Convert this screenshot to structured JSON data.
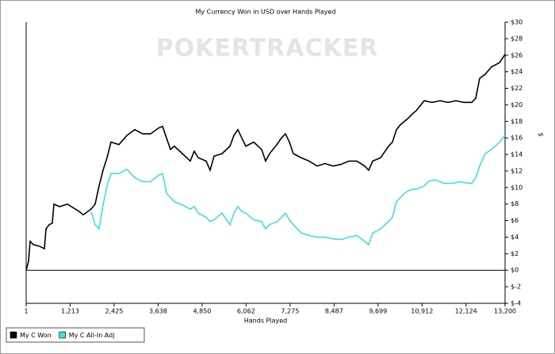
{
  "chart_data": {
    "type": "line",
    "title": "My Currency Won in USD over Hands Played",
    "watermark": "POKERTRACKER",
    "x_label": "Hands Played",
    "y_label": "$",
    "x": [
      1,
      67,
      110,
      198,
      372,
      504,
      547,
      635,
      722,
      766,
      919,
      1137,
      1356,
      1465,
      1574,
      1793,
      1902,
      2011,
      2120,
      2230,
      2339,
      2558,
      2776,
      2995,
      3213,
      3432,
      3650,
      3760,
      3869,
      3978,
      4087,
      4306,
      4524,
      4634,
      4743,
      4962,
      5071,
      5180,
      5399,
      5617,
      5726,
      5836,
      5945,
      6054,
      6273,
      6491,
      6600,
      6710,
      6928,
      7037,
      7147,
      7256,
      7365,
      7584,
      7802,
      8021,
      8239,
      8458,
      8677,
      8895,
      9114,
      9332,
      9442,
      9551,
      9769,
      9988,
      10097,
      10206,
      10316,
      10425,
      10534,
      10643,
      10752,
      10862,
      10971,
      11080,
      11189,
      11299,
      11408,
      11517,
      11626,
      11735,
      11845,
      11954,
      12063,
      12282,
      12391,
      12500,
      12653,
      12828,
      13047,
      13200
    ],
    "series": [
      {
        "name": "My C Won",
        "color": "#000000",
        "values": [
          0,
          1.1,
          3.5,
          3.1,
          2.9,
          2.6,
          5.0,
          5.5,
          5.7,
          8.0,
          7.7,
          8.0,
          7.4,
          7.1,
          6.7,
          7.4,
          8.0,
          10.2,
          12.1,
          13.6,
          15.5,
          15.2,
          16.3,
          17.0,
          16.5,
          16.5,
          17.2,
          17.4,
          16.0,
          14.6,
          15.0,
          14.1,
          13.2,
          14.4,
          13.6,
          13.2,
          12.1,
          13.8,
          14.1,
          15.0,
          16.3,
          17.0,
          16.0,
          15.0,
          15.5,
          14.6,
          13.2,
          14.1,
          15.3,
          16.0,
          16.5,
          15.5,
          14.1,
          13.6,
          13.2,
          12.6,
          12.9,
          12.6,
          12.8,
          13.2,
          13.2,
          12.6,
          12.1,
          13.2,
          13.6,
          15.0,
          15.5,
          17.0,
          17.6,
          18.0,
          18.4,
          18.9,
          19.3,
          19.9,
          20.5,
          20.4,
          20.3,
          20.4,
          20.5,
          20.4,
          20.3,
          20.4,
          20.5,
          20.4,
          20.3,
          20.3,
          20.8,
          23.2,
          23.7,
          24.6,
          25.1,
          26.1
        ]
      },
      {
        "name": "My C All-In Adj",
        "color": "#3fdede",
        "values": [
          null,
          null,
          null,
          null,
          null,
          null,
          null,
          null,
          null,
          null,
          null,
          null,
          null,
          null,
          null,
          7.1,
          5.5,
          5.0,
          7.9,
          10.2,
          11.7,
          11.7,
          12.2,
          11.2,
          10.7,
          10.7,
          11.5,
          11.7,
          9.3,
          8.8,
          8.3,
          7.9,
          7.4,
          7.7,
          6.9,
          6.4,
          5.9,
          6.1,
          6.9,
          5.5,
          6.9,
          7.7,
          7.1,
          6.9,
          6.1,
          5.9,
          5.0,
          5.5,
          5.9,
          6.4,
          6.9,
          6.1,
          5.5,
          4.5,
          4.2,
          4.0,
          4.0,
          3.8,
          3.7,
          4.0,
          4.2,
          3.5,
          3.1,
          4.5,
          5.0,
          5.9,
          6.4,
          8.3,
          8.8,
          9.3,
          9.6,
          9.8,
          9.8,
          10.0,
          10.2,
          10.7,
          10.9,
          10.9,
          10.7,
          10.5,
          10.5,
          10.5,
          10.6,
          10.7,
          10.6,
          10.5,
          11.2,
          12.6,
          14.1,
          14.6,
          15.5,
          16.3
        ]
      }
    ],
    "xlim": [
      1,
      13200
    ],
    "xticks": [
      1,
      {
        "value": 1213,
        "label": "1,213"
      },
      {
        "value": 2425,
        "label": "2,425"
      },
      {
        "value": 3638,
        "label": "3,638"
      },
      {
        "value": 4850,
        "label": "4,850"
      },
      {
        "value": 6062,
        "label": "6,062"
      },
      {
        "value": 7275,
        "label": "7,275"
      },
      {
        "value": 8487,
        "label": "8,487"
      },
      {
        "value": 9699,
        "label": "9,699"
      },
      {
        "value": 10912,
        "label": "10,912"
      },
      {
        "value": 12124,
        "label": "12,124"
      },
      {
        "value": 13200,
        "label": "13,200"
      }
    ],
    "ylim": [
      -4,
      30
    ],
    "yticks": [
      {
        "value": -4,
        "label": "$-4"
      },
      {
        "value": -2,
        "label": "$-2"
      },
      {
        "value": 0,
        "label": "$0"
      },
      {
        "value": 2,
        "label": "$2"
      },
      {
        "value": 4,
        "label": "$4"
      },
      {
        "value": 6,
        "label": "$6"
      },
      {
        "value": 8,
        "label": "$8"
      },
      {
        "value": 10,
        "label": "$10"
      },
      {
        "value": 12,
        "label": "$12"
      },
      {
        "value": 14,
        "label": "$14"
      },
      {
        "value": 16,
        "label": "$16"
      },
      {
        "value": 18,
        "label": "$18"
      },
      {
        "value": 20,
        "label": "$20"
      },
      {
        "value": 22,
        "label": "$22"
      },
      {
        "value": 24,
        "label": "$24"
      },
      {
        "value": 26,
        "label": "$26"
      },
      {
        "value": 28,
        "label": "$28"
      },
      {
        "value": 30,
        "label": "$30"
      }
    ],
    "grid": false,
    "legend": "bottom-left"
  }
}
